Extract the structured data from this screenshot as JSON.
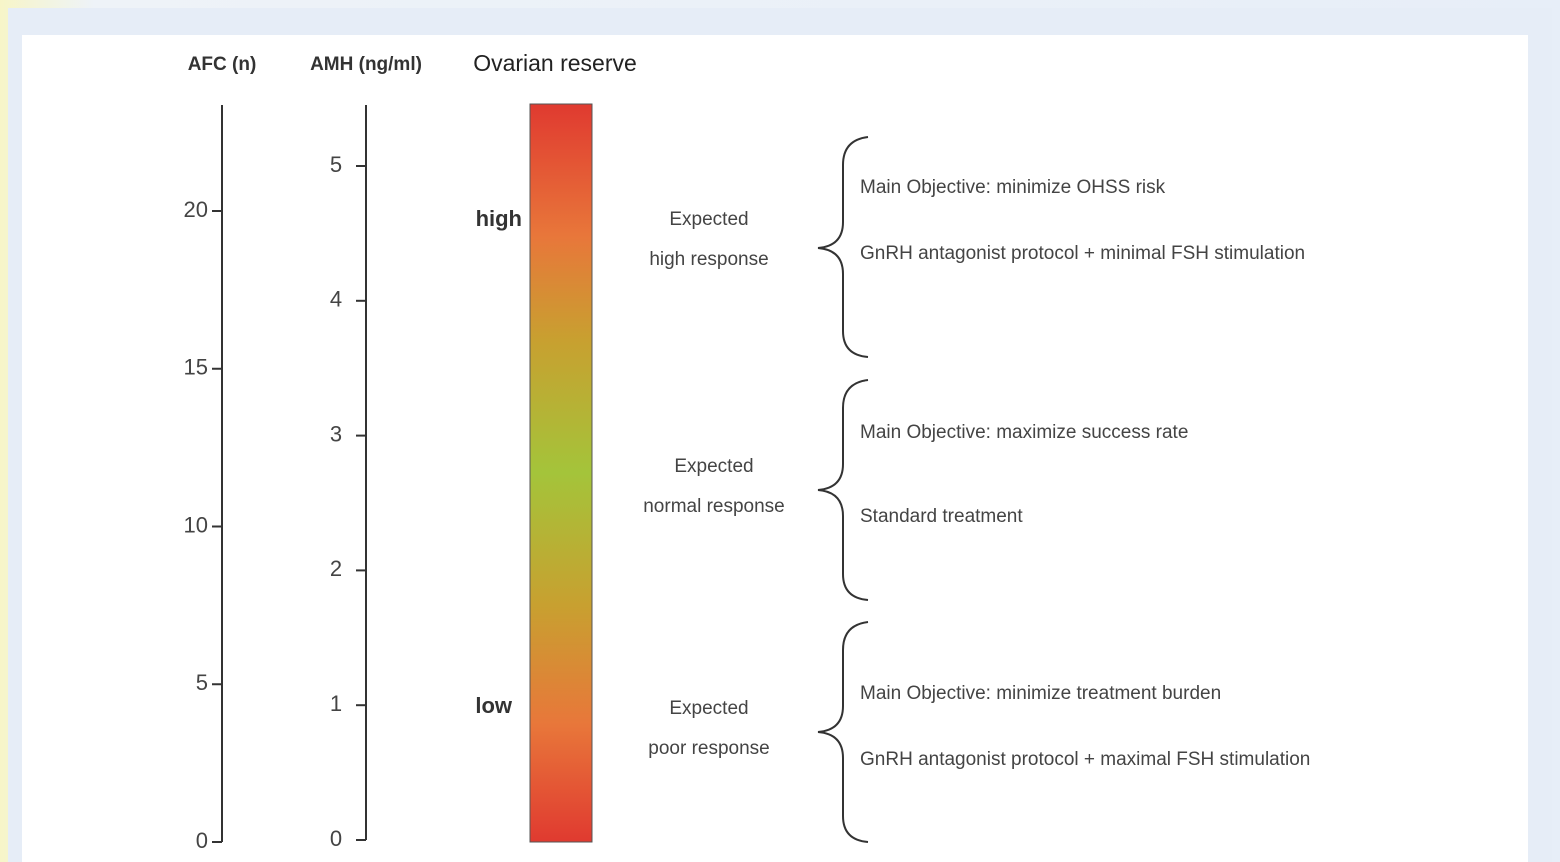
{
  "columns": {
    "afc": "AFC (n)",
    "amh": "AMH (ng/ml)",
    "reserve": "Ovarian reserve"
  },
  "afc_ticks": [
    0,
    5,
    10,
    15,
    20
  ],
  "amh_ticks": [
    0,
    1,
    2,
    3,
    4,
    5
  ],
  "reserve_labels": {
    "high": "high",
    "low": "low"
  },
  "groups": [
    {
      "response": [
        "Expected",
        "high response"
      ],
      "objective": "Main Objective: minimize OHSS risk",
      "protocol": "GnRH antagonist protocol + minimal FSH stimulation"
    },
    {
      "response": [
        "Expected",
        "normal response"
      ],
      "objective": "Main Objective: maximize success rate",
      "protocol": "Standard treatment"
    },
    {
      "response": [
        "Expected",
        "poor response"
      ],
      "objective": "Main Objective: minimize treatment burden",
      "protocol": "GnRH antagonist protocol + maximal FSH stimulation"
    }
  ]
}
